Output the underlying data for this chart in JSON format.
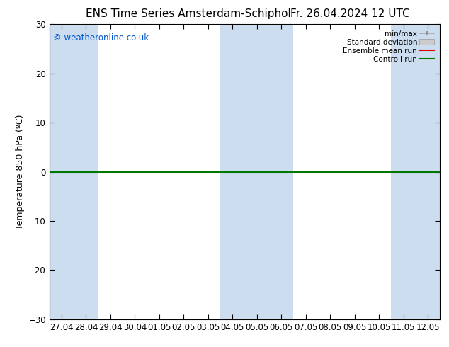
{
  "title_left": "ENS Time Series Amsterdam-Schiphol",
  "title_right": "Fr. 26.04.2024 12 UTC",
  "ylabel": "Temperature 850 hPa (ºC)",
  "watermark": "© weatheronline.co.uk",
  "ylim": [
    -30,
    30
  ],
  "yticks": [
    -30,
    -20,
    -10,
    0,
    10,
    20,
    30
  ],
  "xtick_labels": [
    "27.04",
    "28.04",
    "29.04",
    "30.04",
    "01.05",
    "02.05",
    "03.05",
    "04.05",
    "05.05",
    "06.05",
    "07.05",
    "08.05",
    "09.05",
    "10.05",
    "11.05",
    "12.05"
  ],
  "shaded_bands_x": [
    0,
    1,
    7,
    8,
    9,
    14,
    15
  ],
  "band_color": "#ccddf0",
  "background_color": "#ffffff",
  "green_line_color": "#007700",
  "red_line_color": "#dd0000",
  "legend_items": [
    {
      "label": "min/max"
    },
    {
      "label": "Standard deviation"
    },
    {
      "label": "Ensemble mean run",
      "color": "#dd0000"
    },
    {
      "label": "Controll run",
      "color": "#007700"
    }
  ],
  "title_fontsize": 11,
  "tick_fontsize": 8.5,
  "ylabel_fontsize": 9,
  "watermark_fontsize": 8.5,
  "watermark_color": "#0055cc",
  "legend_fontsize": 7.5
}
